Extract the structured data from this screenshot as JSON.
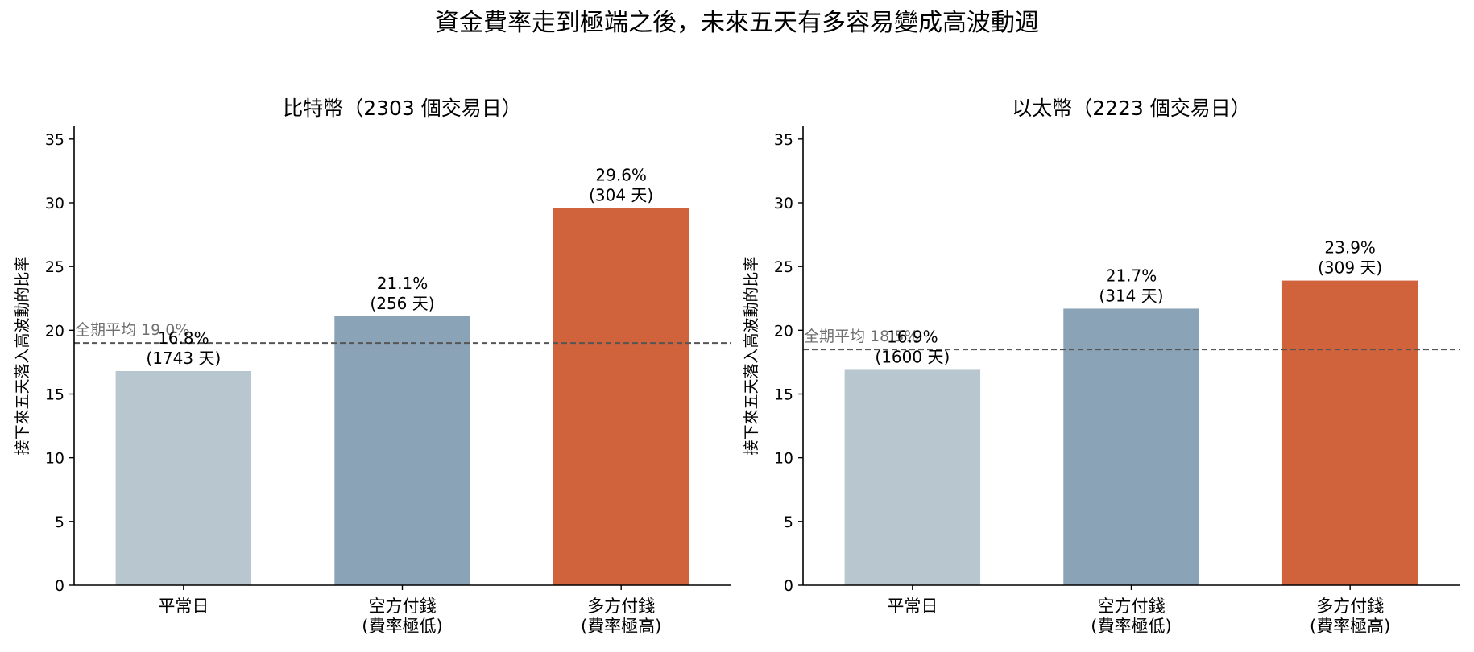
{
  "figure_title": "資金費率走到極端之後，未來五天有多容易變成高波動週",
  "colors": {
    "normal": "#b8c6cf",
    "low": "#8ba3b6",
    "high": "#d0623c",
    "avg_line": "#555555",
    "avg_label": "#6f6f6f",
    "axis": "#000000"
  },
  "chart_data": [
    {
      "type": "bar",
      "title": "比特幣（2303 個交易日）",
      "ylabel": "接下來五天落入高波動的比率",
      "ylim": [
        0,
        36
      ],
      "yticks": [
        0,
        5,
        10,
        15,
        20,
        25,
        30,
        35
      ],
      "categories": [
        [
          "平常日"
        ],
        [
          "空方付錢",
          "(費率極低)"
        ],
        [
          "多方付錢",
          "(費率極高)"
        ]
      ],
      "values": [
        16.8,
        21.1,
        29.6
      ],
      "value_labels": [
        "16.8%",
        "21.1%",
        "29.6%"
      ],
      "day_labels": [
        "(1743 天)",
        "(256 天)",
        "(304 天)"
      ],
      "bar_colors": [
        "#b8c6cf",
        "#8ba3b6",
        "#d0623c"
      ],
      "average": {
        "value": 19.0,
        "label": "全期平均 19.0%"
      }
    },
    {
      "type": "bar",
      "title": "以太幣（2223 個交易日）",
      "ylabel": "接下來五天落入高波動的比率",
      "ylim": [
        0,
        36
      ],
      "yticks": [
        0,
        5,
        10,
        15,
        20,
        25,
        30,
        35
      ],
      "categories": [
        [
          "平常日"
        ],
        [
          "空方付錢",
          "(費率極低)"
        ],
        [
          "多方付錢",
          "(費率極高)"
        ]
      ],
      "values": [
        16.9,
        21.7,
        23.9
      ],
      "value_labels": [
        "16.9%",
        "21.7%",
        "23.9%"
      ],
      "day_labels": [
        "(1600 天)",
        "(314 天)",
        "(309 天)"
      ],
      "bar_colors": [
        "#b8c6cf",
        "#8ba3b6",
        "#d0623c"
      ],
      "average": {
        "value": 18.5,
        "label": "全期平均 18.5%"
      }
    }
  ]
}
